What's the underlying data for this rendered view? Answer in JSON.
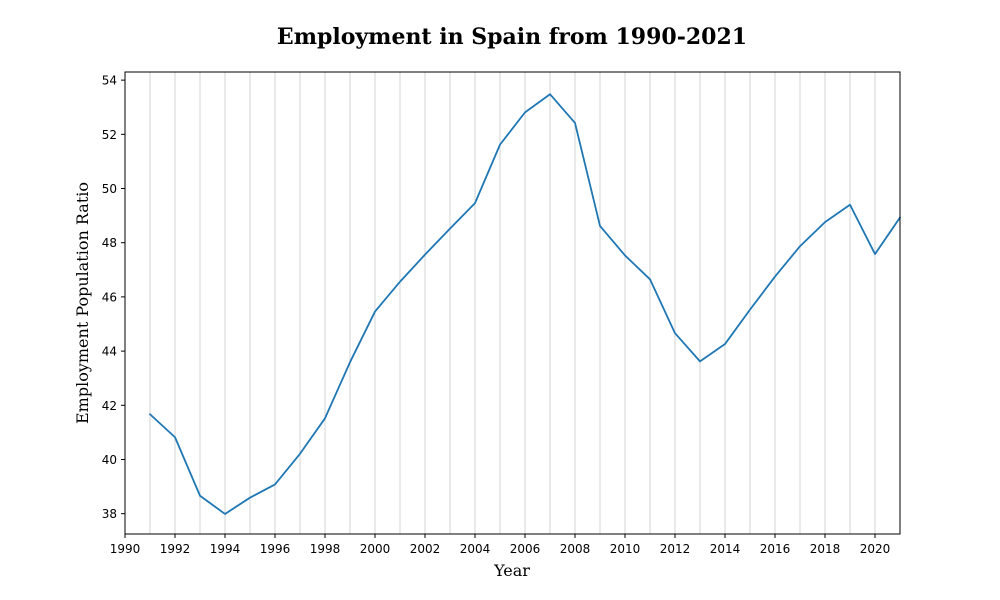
{
  "chart_data": {
    "type": "line",
    "title": "Employment in Spain from 1990-2021",
    "xlabel": "Year",
    "ylabel": "Employment Population Ratio",
    "xlim": [
      1990,
      2021
    ],
    "ylim": [
      37.25,
      54.3
    ],
    "x_ticks": [
      1990,
      1992,
      1994,
      1996,
      1998,
      2000,
      2002,
      2004,
      2006,
      2008,
      2010,
      2012,
      2014,
      2016,
      2018,
      2020
    ],
    "y_ticks": [
      38,
      40,
      42,
      44,
      46,
      48,
      50,
      52,
      54
    ],
    "grid": "vertical, every year",
    "legend": "none",
    "series": [
      {
        "color": "#1f77b4",
        "x": [
          1991,
          1992,
          1993,
          1994,
          1995,
          1996,
          1997,
          1998,
          1999,
          2000,
          2001,
          2002,
          2003,
          2004,
          2005,
          2006,
          2007,
          2008,
          2009,
          2010,
          2011,
          2012,
          2013,
          2014,
          2015,
          2016,
          2017,
          2018,
          2019,
          2020,
          2021
        ],
        "y": [
          41.67,
          40.82,
          38.66,
          37.99,
          38.59,
          39.08,
          40.21,
          41.52,
          43.59,
          45.46,
          46.56,
          47.56,
          48.52,
          49.46,
          51.62,
          52.81,
          53.48,
          52.42,
          48.62,
          47.53,
          46.65,
          44.66,
          43.62,
          44.26,
          45.53,
          46.75,
          47.87,
          48.76,
          49.4,
          47.58,
          48.93
        ]
      }
    ]
  }
}
